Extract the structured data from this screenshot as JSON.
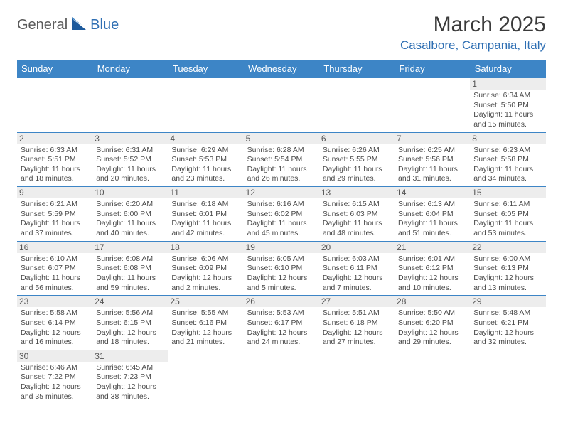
{
  "brand": {
    "part1": "General",
    "part2": "Blue"
  },
  "title": "March 2025",
  "location": "Casalbore, Campania, Italy",
  "colors": {
    "header_bg": "#3d85c6",
    "header_text": "#ffffff",
    "border": "#3d85c6",
    "daynum_bg": "#ededed",
    "body_text": "#4a4a4a",
    "brand_gray": "#5a5a5a",
    "brand_blue": "#2f6fb3"
  },
  "weekdays": [
    "Sunday",
    "Monday",
    "Tuesday",
    "Wednesday",
    "Thursday",
    "Friday",
    "Saturday"
  ],
  "weeks": [
    [
      null,
      null,
      null,
      null,
      null,
      null,
      {
        "n": "1",
        "sr": "Sunrise: 6:34 AM",
        "ss": "Sunset: 5:50 PM",
        "dl": "Daylight: 11 hours and 15 minutes."
      }
    ],
    [
      {
        "n": "2",
        "sr": "Sunrise: 6:33 AM",
        "ss": "Sunset: 5:51 PM",
        "dl": "Daylight: 11 hours and 18 minutes."
      },
      {
        "n": "3",
        "sr": "Sunrise: 6:31 AM",
        "ss": "Sunset: 5:52 PM",
        "dl": "Daylight: 11 hours and 20 minutes."
      },
      {
        "n": "4",
        "sr": "Sunrise: 6:29 AM",
        "ss": "Sunset: 5:53 PM",
        "dl": "Daylight: 11 hours and 23 minutes."
      },
      {
        "n": "5",
        "sr": "Sunrise: 6:28 AM",
        "ss": "Sunset: 5:54 PM",
        "dl": "Daylight: 11 hours and 26 minutes."
      },
      {
        "n": "6",
        "sr": "Sunrise: 6:26 AM",
        "ss": "Sunset: 5:55 PM",
        "dl": "Daylight: 11 hours and 29 minutes."
      },
      {
        "n": "7",
        "sr": "Sunrise: 6:25 AM",
        "ss": "Sunset: 5:56 PM",
        "dl": "Daylight: 11 hours and 31 minutes."
      },
      {
        "n": "8",
        "sr": "Sunrise: 6:23 AM",
        "ss": "Sunset: 5:58 PM",
        "dl": "Daylight: 11 hours and 34 minutes."
      }
    ],
    [
      {
        "n": "9",
        "sr": "Sunrise: 6:21 AM",
        "ss": "Sunset: 5:59 PM",
        "dl": "Daylight: 11 hours and 37 minutes."
      },
      {
        "n": "10",
        "sr": "Sunrise: 6:20 AM",
        "ss": "Sunset: 6:00 PM",
        "dl": "Daylight: 11 hours and 40 minutes."
      },
      {
        "n": "11",
        "sr": "Sunrise: 6:18 AM",
        "ss": "Sunset: 6:01 PM",
        "dl": "Daylight: 11 hours and 42 minutes."
      },
      {
        "n": "12",
        "sr": "Sunrise: 6:16 AM",
        "ss": "Sunset: 6:02 PM",
        "dl": "Daylight: 11 hours and 45 minutes."
      },
      {
        "n": "13",
        "sr": "Sunrise: 6:15 AM",
        "ss": "Sunset: 6:03 PM",
        "dl": "Daylight: 11 hours and 48 minutes."
      },
      {
        "n": "14",
        "sr": "Sunrise: 6:13 AM",
        "ss": "Sunset: 6:04 PM",
        "dl": "Daylight: 11 hours and 51 minutes."
      },
      {
        "n": "15",
        "sr": "Sunrise: 6:11 AM",
        "ss": "Sunset: 6:05 PM",
        "dl": "Daylight: 11 hours and 53 minutes."
      }
    ],
    [
      {
        "n": "16",
        "sr": "Sunrise: 6:10 AM",
        "ss": "Sunset: 6:07 PM",
        "dl": "Daylight: 11 hours and 56 minutes."
      },
      {
        "n": "17",
        "sr": "Sunrise: 6:08 AM",
        "ss": "Sunset: 6:08 PM",
        "dl": "Daylight: 11 hours and 59 minutes."
      },
      {
        "n": "18",
        "sr": "Sunrise: 6:06 AM",
        "ss": "Sunset: 6:09 PM",
        "dl": "Daylight: 12 hours and 2 minutes."
      },
      {
        "n": "19",
        "sr": "Sunrise: 6:05 AM",
        "ss": "Sunset: 6:10 PM",
        "dl": "Daylight: 12 hours and 5 minutes."
      },
      {
        "n": "20",
        "sr": "Sunrise: 6:03 AM",
        "ss": "Sunset: 6:11 PM",
        "dl": "Daylight: 12 hours and 7 minutes."
      },
      {
        "n": "21",
        "sr": "Sunrise: 6:01 AM",
        "ss": "Sunset: 6:12 PM",
        "dl": "Daylight: 12 hours and 10 minutes."
      },
      {
        "n": "22",
        "sr": "Sunrise: 6:00 AM",
        "ss": "Sunset: 6:13 PM",
        "dl": "Daylight: 12 hours and 13 minutes."
      }
    ],
    [
      {
        "n": "23",
        "sr": "Sunrise: 5:58 AM",
        "ss": "Sunset: 6:14 PM",
        "dl": "Daylight: 12 hours and 16 minutes."
      },
      {
        "n": "24",
        "sr": "Sunrise: 5:56 AM",
        "ss": "Sunset: 6:15 PM",
        "dl": "Daylight: 12 hours and 18 minutes."
      },
      {
        "n": "25",
        "sr": "Sunrise: 5:55 AM",
        "ss": "Sunset: 6:16 PM",
        "dl": "Daylight: 12 hours and 21 minutes."
      },
      {
        "n": "26",
        "sr": "Sunrise: 5:53 AM",
        "ss": "Sunset: 6:17 PM",
        "dl": "Daylight: 12 hours and 24 minutes."
      },
      {
        "n": "27",
        "sr": "Sunrise: 5:51 AM",
        "ss": "Sunset: 6:18 PM",
        "dl": "Daylight: 12 hours and 27 minutes."
      },
      {
        "n": "28",
        "sr": "Sunrise: 5:50 AM",
        "ss": "Sunset: 6:20 PM",
        "dl": "Daylight: 12 hours and 29 minutes."
      },
      {
        "n": "29",
        "sr": "Sunrise: 5:48 AM",
        "ss": "Sunset: 6:21 PM",
        "dl": "Daylight: 12 hours and 32 minutes."
      }
    ],
    [
      {
        "n": "30",
        "sr": "Sunrise: 6:46 AM",
        "ss": "Sunset: 7:22 PM",
        "dl": "Daylight: 12 hours and 35 minutes."
      },
      {
        "n": "31",
        "sr": "Sunrise: 6:45 AM",
        "ss": "Sunset: 7:23 PM",
        "dl": "Daylight: 12 hours and 38 minutes."
      },
      null,
      null,
      null,
      null,
      null
    ]
  ]
}
